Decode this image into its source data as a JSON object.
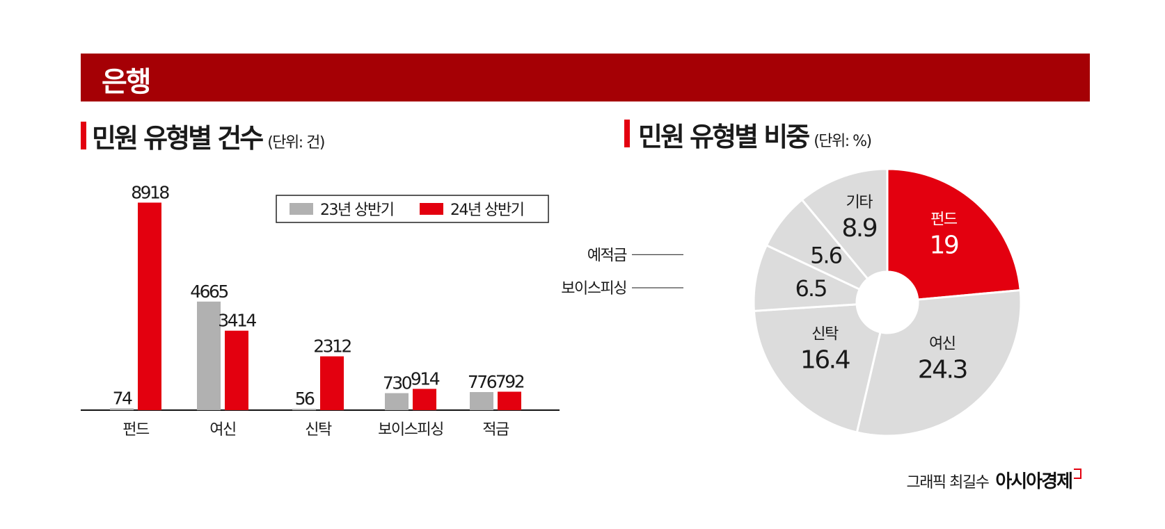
{
  "header": {
    "title": "은행"
  },
  "left_panel": {
    "title": "민원 유형별 건수",
    "unit": "(단위: 건)"
  },
  "right_panel": {
    "title": "민원 유형별 비중",
    "unit": "(단위: %)"
  },
  "footer": {
    "credit": "그래픽 최길수",
    "logo": "아시아경제"
  },
  "colors": {
    "banner": "#a50005",
    "accent_red": "#e3000f",
    "gray_bar": "#b1b1b1",
    "pie_gray": "#dcdcdc"
  },
  "chart_data": [
    {
      "type": "bar",
      "title": "민원 유형별 건수",
      "unit": "(단위: 건)",
      "categories": [
        "펀드",
        "여신",
        "신탁",
        "보이스피싱",
        "적금"
      ],
      "series": [
        {
          "name": "23년 상반기",
          "values": [
            74,
            4665,
            56,
            730,
            776
          ],
          "color": "#b1b1b1"
        },
        {
          "name": "24년 상반기",
          "values": [
            8918,
            3414,
            2312,
            914,
            792
          ],
          "color": "#e3000f"
        }
      ],
      "ylim": [
        0,
        9500
      ],
      "legend": "top-right",
      "grid": false
    },
    {
      "type": "pie",
      "title": "민원 유형별 비중",
      "unit": "(단위: %)",
      "labels": [
        "펀드",
        "여신",
        "신탁",
        "보이스피싱",
        "예적금",
        "기타"
      ],
      "values": [
        19,
        24.3,
        16.4,
        6.5,
        5.6,
        8.9
      ],
      "highlight": "펀드",
      "donut": true
    }
  ]
}
